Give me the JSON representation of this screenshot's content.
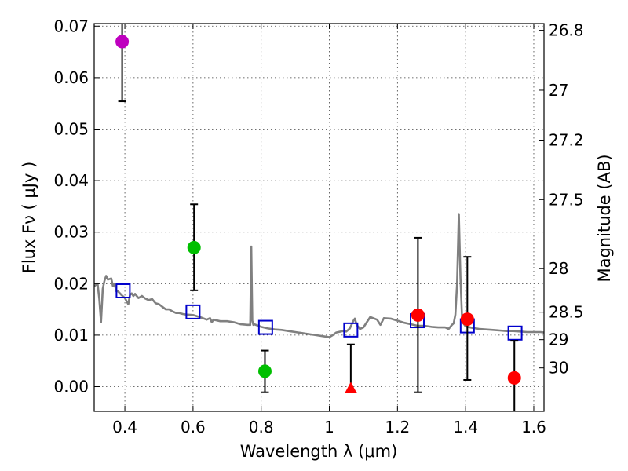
{
  "chart_data": {
    "type": "scatter",
    "xlabel": "Wavelength  λ (μm)",
    "ylabel": "Flux  Fν  ( μJy )",
    "y2label": "Magnitude (AB)",
    "xlim": [
      0.31,
      1.63
    ],
    "ylim": [
      -0.0048,
      0.0705
    ],
    "xticks": [
      {
        "v": 0.4,
        "label": "0.4"
      },
      {
        "v": 0.6,
        "label": "0.6"
      },
      {
        "v": 0.8,
        "label": "0.8"
      },
      {
        "v": 1.0,
        "label": "1"
      },
      {
        "v": 1.2,
        "label": "1.2"
      },
      {
        "v": 1.4,
        "label": "1.4"
      },
      {
        "v": 1.6,
        "label": "1.6"
      }
    ],
    "yticks": [
      {
        "v": 0.0,
        "label": "0.00"
      },
      {
        "v": 0.01,
        "label": "0.01"
      },
      {
        "v": 0.02,
        "label": "0.02"
      },
      {
        "v": 0.03,
        "label": "0.03"
      },
      {
        "v": 0.04,
        "label": "0.04"
      },
      {
        "v": 0.05,
        "label": "0.05"
      },
      {
        "v": 0.06,
        "label": "0.06"
      },
      {
        "v": 0.07,
        "label": "0.07"
      }
    ],
    "magticks": [
      {
        "mag": 26.8,
        "label": "26.8"
      },
      {
        "mag": 27.0,
        "label": "27"
      },
      {
        "mag": 27.2,
        "label": "27.2"
      },
      {
        "mag": 27.5,
        "label": "27.5"
      },
      {
        "mag": 28.0,
        "label": "28"
      },
      {
        "mag": 28.5,
        "label": "28.5"
      },
      {
        "mag": 29.0,
        "label": "29"
      },
      {
        "mag": 30.0,
        "label": "30"
      }
    ],
    "model_sed": {
      "name": "model spectrum",
      "color": "#808080",
      "x": [
        0.31,
        0.32,
        0.325,
        0.33,
        0.335,
        0.34,
        0.345,
        0.35,
        0.36,
        0.365,
        0.37,
        0.375,
        0.38,
        0.39,
        0.4,
        0.41,
        0.415,
        0.42,
        0.425,
        0.43,
        0.44,
        0.45,
        0.46,
        0.47,
        0.48,
        0.49,
        0.5,
        0.51,
        0.52,
        0.53,
        0.54,
        0.55,
        0.56,
        0.57,
        0.58,
        0.6,
        0.62,
        0.64,
        0.65,
        0.655,
        0.66,
        0.68,
        0.7,
        0.72,
        0.74,
        0.76,
        0.768,
        0.771,
        0.774,
        0.777,
        0.78,
        0.8,
        0.82,
        0.84,
        0.86,
        0.88,
        0.9,
        0.92,
        0.94,
        0.96,
        0.98,
        1.0,
        1.01,
        1.02,
        1.04,
        1.05,
        1.06,
        1.07,
        1.075,
        1.08,
        1.09,
        1.1,
        1.12,
        1.14,
        1.15,
        1.16,
        1.18,
        1.2,
        1.22,
        1.24,
        1.26,
        1.28,
        1.3,
        1.32,
        1.34,
        1.35,
        1.36,
        1.365,
        1.37,
        1.375,
        1.38,
        1.385,
        1.39,
        1.4,
        1.42,
        1.44,
        1.46,
        1.48,
        1.5,
        1.52,
        1.54,
        1.56,
        1.58,
        1.6,
        1.62,
        1.63
      ],
      "y": [
        0.0195,
        0.02,
        0.017,
        0.0125,
        0.019,
        0.0205,
        0.0215,
        0.0208,
        0.021,
        0.0195,
        0.02,
        0.0185,
        0.0185,
        0.0178,
        0.0172,
        0.016,
        0.0178,
        0.0181,
        0.0176,
        0.018,
        0.0172,
        0.0176,
        0.0171,
        0.0168,
        0.017,
        0.0162,
        0.016,
        0.0155,
        0.015,
        0.015,
        0.0146,
        0.0143,
        0.0143,
        0.0141,
        0.014,
        0.0139,
        0.0135,
        0.013,
        0.0133,
        0.0125,
        0.013,
        0.0127,
        0.0127,
        0.0125,
        0.0121,
        0.012,
        0.012,
        0.0272,
        0.0128,
        0.012,
        0.0121,
        0.0116,
        0.0113,
        0.0111,
        0.011,
        0.0108,
        0.0106,
        0.0104,
        0.0102,
        0.01,
        0.0098,
        0.0096,
        0.01,
        0.0105,
        0.0108,
        0.0107,
        0.0113,
        0.0127,
        0.0132,
        0.012,
        0.0112,
        0.0115,
        0.0135,
        0.013,
        0.012,
        0.0133,
        0.0132,
        0.0128,
        0.0124,
        0.0121,
        0.0118,
        0.0118,
        0.0116,
        0.0115,
        0.0115,
        0.0112,
        0.012,
        0.0123,
        0.014,
        0.02,
        0.0335,
        0.021,
        0.0126,
        0.0117,
        0.0114,
        0.0112,
        0.0111,
        0.011,
        0.0109,
        0.0108,
        0.0108,
        0.0107,
        0.0106,
        0.0106,
        0.0106,
        0.0105
      ]
    },
    "model_photometry": {
      "name": "model band fluxes",
      "color": "#0000cc",
      "marker": "open-square",
      "x": [
        0.395,
        0.6,
        0.813,
        1.063,
        1.258,
        1.405,
        1.545
      ],
      "y": [
        0.0186,
        0.0145,
        0.0115,
        0.011,
        0.0128,
        0.0118,
        0.0104
      ]
    },
    "observations": [
      {
        "name": "obs-0.39um",
        "x": 0.392,
        "y": 0.067,
        "yerr_low": 0.0116,
        "yerr_high": 0.0035,
        "marker": "circle",
        "color": "#bf00bf"
      },
      {
        "name": "obs-0.60um",
        "x": 0.603,
        "y": 0.027,
        "yerr_low": 0.0083,
        "yerr_high": 0.0084,
        "marker": "circle",
        "color": "#00bf00"
      },
      {
        "name": "obs-0.81um",
        "x": 0.811,
        "y": 0.003,
        "yerr_low": 0.0041,
        "yerr_high": 0.004,
        "marker": "circle",
        "color": "#00bf00"
      },
      {
        "name": "obs-1.06um",
        "x": 1.063,
        "y": -0.0003,
        "yerr_low": 0.0,
        "yerr_high": 0.0085,
        "marker": "triangle",
        "color": "#ff0000"
      },
      {
        "name": "obs-1.26um",
        "x": 1.26,
        "y": 0.0139,
        "yerr_low": 0.015,
        "yerr_high": 0.015,
        "marker": "circle",
        "color": "#ff0000"
      },
      {
        "name": "obs-1.40um",
        "x": 1.405,
        "y": 0.0131,
        "yerr_low": 0.0118,
        "yerr_high": 0.0121,
        "marker": "circle",
        "color": "#ff0000"
      },
      {
        "name": "obs-1.55um",
        "x": 1.543,
        "y": 0.0017,
        "yerr_low": 0.008,
        "yerr_high": 0.0072,
        "marker": "circle",
        "color": "#ff0000"
      }
    ]
  }
}
